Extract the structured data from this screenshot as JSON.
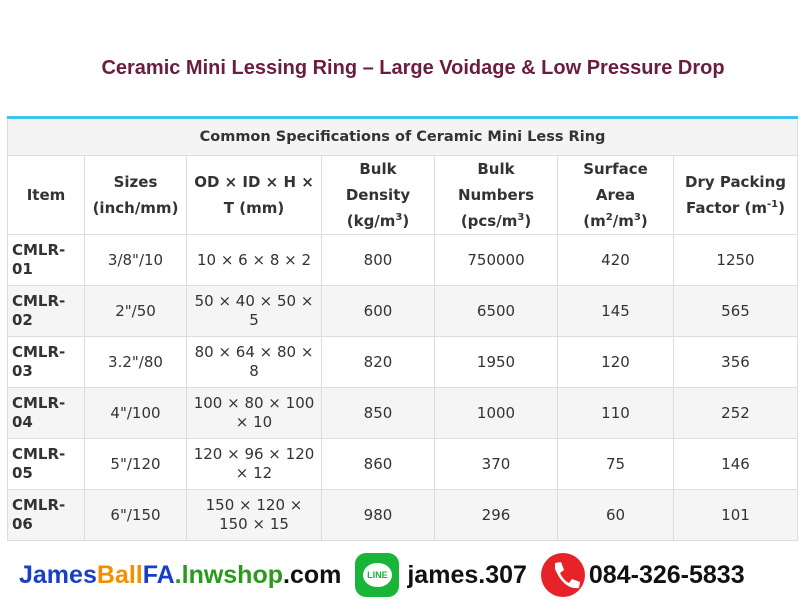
{
  "title": "Ceramic Mini Lessing Ring – Large Voidage & Low Pressure Drop",
  "table": {
    "caption": "Common Specifications of Ceramic Mini Less Ring",
    "header": [
      [
        [
          "Item"
        ]
      ],
      [
        [
          "Sizes"
        ],
        [
          "(inch/mm)"
        ]
      ],
      [
        [
          "OD × ID × H ×"
        ],
        [
          "T (mm)"
        ]
      ],
      [
        [
          "Bulk Density"
        ],
        [
          "(kg/m",
          {
            "sup": "3"
          },
          ")"
        ]
      ],
      [
        [
          "Bulk Numbers"
        ],
        [
          "(pcs/m",
          {
            "sup": "3"
          },
          ")"
        ]
      ],
      [
        [
          "Surface Area"
        ],
        [
          "(m",
          {
            "sup": "2"
          },
          "/m",
          {
            "sup": "3"
          },
          ")"
        ]
      ],
      [
        [
          "Dry Packing"
        ],
        [
          "Factor (m",
          {
            "sup": "-1"
          },
          ")"
        ]
      ]
    ],
    "rows": [
      [
        "CMLR-01",
        "3/8\"/10",
        "10 × 6 × 8 × 2",
        "800",
        "750000",
        "420",
        "1250"
      ],
      [
        "CMLR-02",
        "2\"/50",
        "50 × 40 × 50 × 5",
        "600",
        "6500",
        "145",
        "565"
      ],
      [
        "CMLR-03",
        "3.2\"/80",
        "80 × 64 × 80 × 8",
        "820",
        "1950",
        "120",
        "356"
      ],
      [
        "CMLR-04",
        "4\"/100",
        "100 × 80 × 100 × 10",
        "850",
        "1000",
        "110",
        "252"
      ],
      [
        "CMLR-05",
        "5\"/120",
        "120 × 96 × 120 × 12",
        "860",
        "370",
        "75",
        "146"
      ],
      [
        "CMLR-06",
        "6\"/150",
        "150 × 120 × 150 × 15",
        "980",
        "296",
        "60",
        "101"
      ]
    ]
  },
  "footer": {
    "website": [
      "James",
      "Ball",
      "FA",
      ".lnwshop",
      ".com"
    ],
    "line_icon": "LINE",
    "line_id": "james.307",
    "phone": "084-326-5833"
  }
}
